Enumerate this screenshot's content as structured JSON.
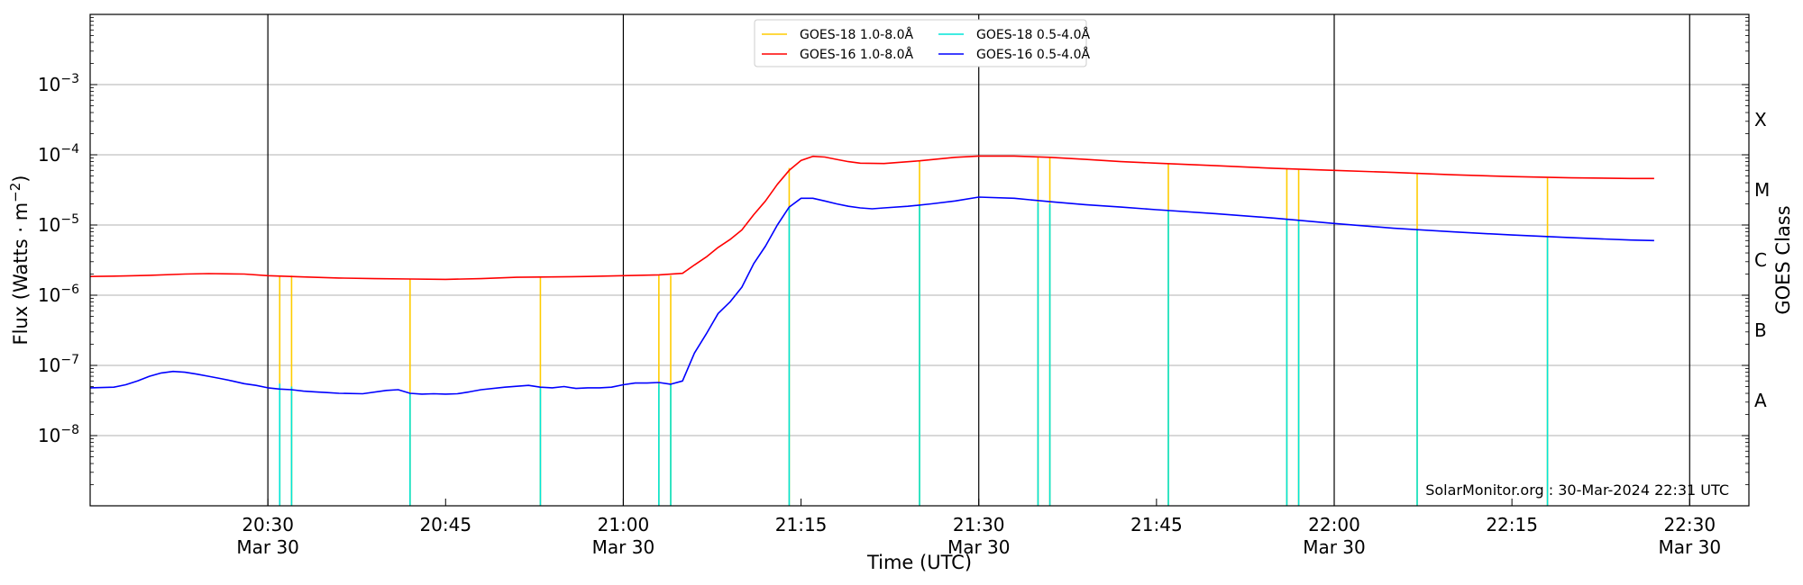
{
  "chart_data": {
    "type": "line",
    "title": "",
    "xlabel": "Time (UTC)",
    "ylabel": "Flux (Watts · m⁻²)",
    "y2label": "GOES Class",
    "yscale": "log",
    "ylim": [
      1e-09,
      0.01
    ],
    "xlim": [
      "20:15",
      "22:35"
    ],
    "grid": "horizontal at decades",
    "legend_placement": "top-center",
    "credit": "SolarMonitor.org : 30-Mar-2024 22:31 UTC",
    "x_ticks": [
      {
        "time": "20:30",
        "label": "20:30",
        "sublabel": "Mar 30"
      },
      {
        "time": "20:45",
        "label": "20:45",
        "sublabel": ""
      },
      {
        "time": "21:00",
        "label": "21:00",
        "sublabel": "Mar 30"
      },
      {
        "time": "21:15",
        "label": "21:15",
        "sublabel": ""
      },
      {
        "time": "21:30",
        "label": "21:30",
        "sublabel": "Mar 30"
      },
      {
        "time": "21:45",
        "label": "21:45",
        "sublabel": ""
      },
      {
        "time": "22:00",
        "label": "22:00",
        "sublabel": "Mar 30"
      },
      {
        "time": "22:15",
        "label": "22:15",
        "sublabel": ""
      },
      {
        "time": "22:30",
        "label": "22:30",
        "sublabel": "Mar 30"
      }
    ],
    "vertical_markers": [
      "20:30",
      "21:00",
      "21:30",
      "22:00",
      "22:30"
    ],
    "y_ticks": [
      {
        "exp": -8,
        "label": "10−8"
      },
      {
        "exp": -7,
        "label": "10−7"
      },
      {
        "exp": -6,
        "label": "10−6"
      },
      {
        "exp": -5,
        "label": "10−5"
      },
      {
        "exp": -4,
        "label": "10−4"
      },
      {
        "exp": -3,
        "label": "10−3"
      }
    ],
    "goes_classes": [
      {
        "label": "A",
        "flux": 3.16e-08
      },
      {
        "label": "B",
        "flux": 3.16e-07
      },
      {
        "label": "C",
        "flux": 3.16e-06
      },
      {
        "label": "M",
        "flux": 3.16e-05
      },
      {
        "label": "X",
        "flux": 0.000316
      }
    ],
    "series": [
      {
        "name": "GOES-18 1.0-8.0Å",
        "color": "#ffcc00",
        "style": "spikes",
        "x": [
          "20:31",
          "20:32",
          "20:42",
          "20:53",
          "21:03",
          "21:04",
          "21:14",
          "21:25",
          "21:35",
          "21:36",
          "21:46",
          "21:56",
          "21:57",
          "22:07",
          "22:18"
        ],
        "values": [
          1.9e-06,
          1.9e-06,
          1.7e-06,
          1.8e-06,
          1.9e-06,
          1.9e-06,
          6.5e-05,
          8e-05,
          9.3e-05,
          9.1e-05,
          7.4e-05,
          6.3e-05,
          6.1e-05,
          5.3e-05,
          4.7e-05
        ]
      },
      {
        "name": "GOES-16 1.0-8.0Å",
        "color": "#ff0000",
        "style": "line",
        "x": [
          "20:15",
          "20:18",
          "20:20",
          "20:23",
          "20:25",
          "20:28",
          "20:30",
          "20:33",
          "20:36",
          "20:39",
          "20:42",
          "20:45",
          "20:48",
          "20:51",
          "20:54",
          "20:57",
          "21:00",
          "21:03",
          "21:05",
          "21:06",
          "21:07",
          "21:08",
          "21:09",
          "21:10",
          "21:11",
          "21:12",
          "21:13",
          "21:14",
          "21:15",
          "21:16",
          "21:17",
          "21:18",
          "21:19",
          "21:20",
          "21:22",
          "21:25",
          "21:28",
          "21:30",
          "21:33",
          "21:36",
          "21:39",
          "21:42",
          "21:45",
          "21:50",
          "21:55",
          "22:00",
          "22:05",
          "22:10",
          "22:15",
          "22:20",
          "22:25",
          "22:27"
        ],
        "values": [
          1.85e-06,
          1.88e-06,
          1.92e-06,
          2e-06,
          2.03e-06,
          2e-06,
          1.9e-06,
          1.82e-06,
          1.76e-06,
          1.72e-06,
          1.7e-06,
          1.68e-06,
          1.72e-06,
          1.8e-06,
          1.82e-06,
          1.85e-06,
          1.9e-06,
          1.95e-06,
          2.05e-06,
          2.7e-06,
          3.5e-06,
          4.8e-06,
          6.2e-06,
          8.5e-06,
          1.4e-05,
          2.2e-05,
          3.8e-05,
          6e-05,
          8.3e-05,
          9.5e-05,
          9.3e-05,
          8.6e-05,
          8e-05,
          7.6e-05,
          7.5e-05,
          8.2e-05,
          9.2e-05,
          9.6e-05,
          9.6e-05,
          9.2e-05,
          8.6e-05,
          8e-05,
          7.6e-05,
          7e-05,
          6.4e-05,
          6e-05,
          5.6e-05,
          5.2e-05,
          4.9e-05,
          4.7e-05,
          4.6e-05,
          4.6e-05
        ]
      },
      {
        "name": "GOES-18 0.5-4.0Å",
        "color": "#00e5d9",
        "style": "spikes",
        "x": [
          "20:31",
          "20:32",
          "20:42",
          "20:53",
          "21:03",
          "21:04",
          "21:14",
          "21:25",
          "21:35",
          "21:36",
          "21:46",
          "21:56",
          "21:57",
          "22:07",
          "22:18"
        ],
        "values": [
          5.5e-08,
          5e-08,
          4e-08,
          5e-08,
          5.5e-08,
          5.5e-08,
          1.8e-05,
          1.9e-05,
          2.1e-05,
          2e-05,
          1.6e-05,
          1.2e-05,
          1.15e-05,
          8.5e-06,
          6.8e-06
        ]
      },
      {
        "name": "GOES-16 0.5-4.0Å",
        "color": "#0000ff",
        "style": "line",
        "x": [
          "20:15",
          "20:17",
          "20:18",
          "20:19",
          "20:20",
          "20:21",
          "20:22",
          "20:23",
          "20:24",
          "20:25",
          "20:26",
          "20:27",
          "20:28",
          "20:29",
          "20:30",
          "20:31",
          "20:32",
          "20:33",
          "20:34",
          "20:35",
          "20:36",
          "20:38",
          "20:40",
          "20:41",
          "20:42",
          "20:43",
          "20:44",
          "20:45",
          "20:46",
          "20:47",
          "20:48",
          "20:50",
          "20:52",
          "20:53",
          "20:54",
          "20:55",
          "20:56",
          "20:57",
          "20:58",
          "20:59",
          "21:00",
          "21:01",
          "21:02",
          "21:03",
          "21:04",
          "21:05",
          "21:06",
          "21:07",
          "21:08",
          "21:09",
          "21:10",
          "21:11",
          "21:12",
          "21:13",
          "21:14",
          "21:15",
          "21:16",
          "21:17",
          "21:18",
          "21:19",
          "21:20",
          "21:21",
          "21:22",
          "21:24",
          "21:26",
          "21:28",
          "21:30",
          "21:33",
          "21:36",
          "21:39",
          "21:42",
          "21:45",
          "21:50",
          "21:55",
          "22:00",
          "22:05",
          "22:10",
          "22:15",
          "22:20",
          "22:25",
          "22:27"
        ],
        "values": [
          4.8e-08,
          4.9e-08,
          5.3e-08,
          6e-08,
          7e-08,
          7.8e-08,
          8.2e-08,
          8e-08,
          7.5e-08,
          7e-08,
          6.5e-08,
          6e-08,
          5.5e-08,
          5.2e-08,
          4.8e-08,
          4.6e-08,
          4.5e-08,
          4.3e-08,
          4.2e-08,
          4.1e-08,
          4e-08,
          3.95e-08,
          4.4e-08,
          4.5e-08,
          4e-08,
          3.9e-08,
          3.95e-08,
          3.9e-08,
          3.95e-08,
          4.2e-08,
          4.5e-08,
          4.9e-08,
          5.2e-08,
          4.9e-08,
          4.8e-08,
          5e-08,
          4.7e-08,
          4.8e-08,
          4.8e-08,
          4.9e-08,
          5.3e-08,
          5.6e-08,
          5.6e-08,
          5.7e-08,
          5.4e-08,
          6e-08,
          1.5e-07,
          2.8e-07,
          5.5e-07,
          8e-07,
          1.3e-06,
          2.8e-06,
          5e-06,
          1e-05,
          1.8e-05,
          2.4e-05,
          2.4e-05,
          2.2e-05,
          2e-05,
          1.85e-05,
          1.75e-05,
          1.7e-05,
          1.75e-05,
          1.85e-05,
          2e-05,
          2.2e-05,
          2.5e-05,
          2.4e-05,
          2.15e-05,
          1.95e-05,
          1.8e-05,
          1.65e-05,
          1.45e-05,
          1.25e-05,
          1.05e-05,
          9e-06,
          8e-06,
          7.2e-06,
          6.6e-06,
          6.1e-06,
          6e-06
        ]
      }
    ]
  }
}
